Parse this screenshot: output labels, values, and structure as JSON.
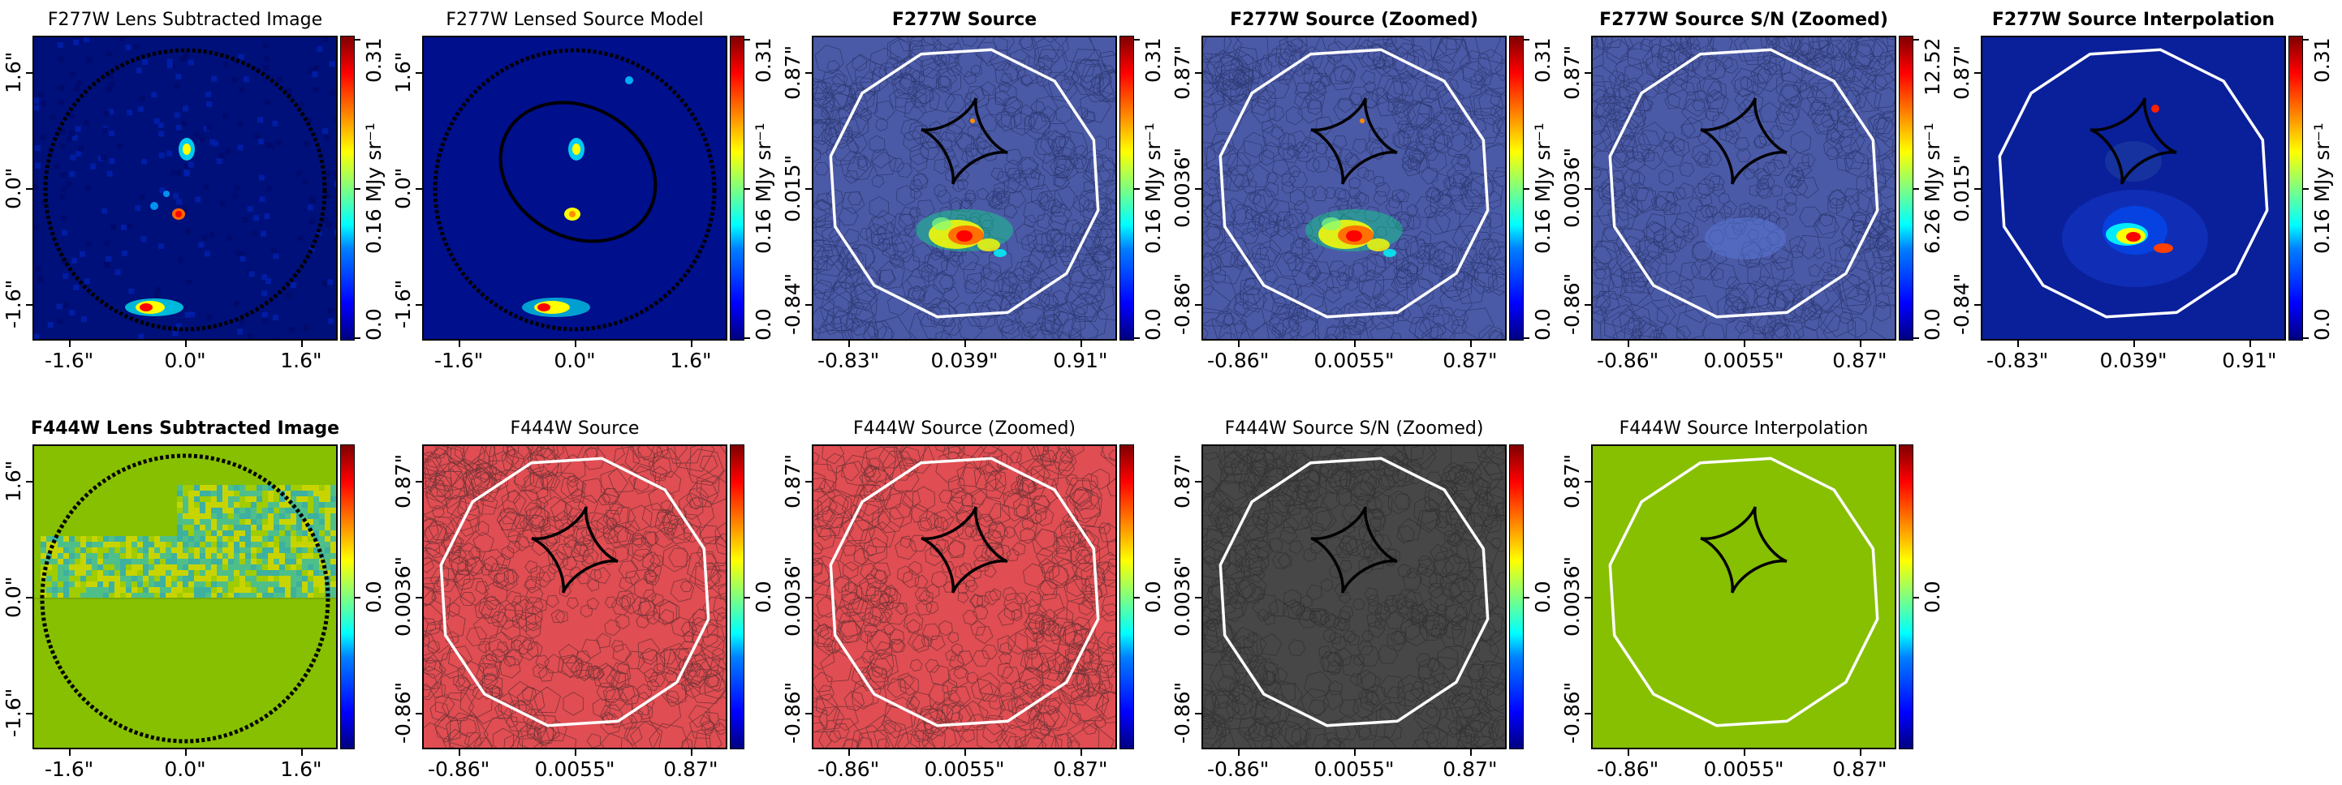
{
  "panels": [
    {
      "id": "p1",
      "title": "F277W Lens Subtracted Image",
      "bold": false,
      "kind": "image",
      "xticks": [
        "-1.6\"",
        "0.0\"",
        "1.6\""
      ],
      "yticks": [
        "1.6\"",
        "0.0\"",
        "-1.6\""
      ],
      "cbar_ticks": [
        "0.31",
        "0.16 MJy sr⁻¹",
        "0.0"
      ],
      "bg": "#00107a"
    },
    {
      "id": "p2",
      "title": "F277W Lensed Source Model",
      "bold": false,
      "kind": "model",
      "xticks": [
        "-1.6\"",
        "0.0\"",
        "1.6\""
      ],
      "yticks": [
        "1.6\"",
        "0.0\"",
        "-1.6\""
      ],
      "cbar_ticks": [
        "0.31",
        "0.16 MJy sr⁻¹",
        "0.0"
      ],
      "bg": "#000f8c"
    },
    {
      "id": "p3",
      "title": "F277W Source",
      "bold": true,
      "kind": "source",
      "xticks": [
        "-0.83\"",
        "0.039\"",
        "0.91\""
      ],
      "yticks": [
        "0.87\"",
        "0.015\"",
        "-0.84\""
      ],
      "cbar_ticks": [
        "0.31",
        "0.16 MJy sr⁻¹",
        "0.0"
      ],
      "bg": "#4b5aa6"
    },
    {
      "id": "p4",
      "title": "F277W Source (Zoomed)",
      "bold": true,
      "kind": "source",
      "xticks": [
        "-0.86\"",
        "0.0055\"",
        "0.87\""
      ],
      "yticks": [
        "0.87\"",
        "0.0036\"",
        "-0.86\""
      ],
      "cbar_ticks": [
        "0.31",
        "0.16 MJy sr⁻¹",
        "0.0"
      ],
      "bg": "#4b5aa6"
    },
    {
      "id": "p5",
      "title": "F277W Source S/N (Zoomed)",
      "bold": true,
      "kind": "sn",
      "xticks": [
        "-0.86\"",
        "0.0055\"",
        "0.87\""
      ],
      "yticks": [
        "0.87\"",
        "0.0036\"",
        "-0.86\""
      ],
      "cbar_ticks": [
        "12.52",
        "6.26 MJy sr⁻¹",
        "0.0"
      ],
      "bg": "#4b5aa6"
    },
    {
      "id": "p6",
      "title": "F277W Source Interpolation",
      "bold": true,
      "kind": "interp",
      "xticks": [
        "-0.83\"",
        "0.039\"",
        "0.91\""
      ],
      "yticks": [
        "0.87\"",
        "0.015\"",
        "-0.84\""
      ],
      "cbar_ticks": [
        "0.31",
        "0.16 MJy sr⁻¹",
        "0.0"
      ],
      "bg": "#0a1f9a"
    },
    {
      "id": "p7",
      "title": "F444W Lens Subtracted Image",
      "bold": true,
      "kind": "f444img",
      "xticks": [
        "-1.6\"",
        "0.0\"",
        "1.6\""
      ],
      "yticks": [
        "1.6\"",
        "0.0\"",
        "-1.6\""
      ],
      "cbar_ticks": [
        "0.0"
      ],
      "bg": "#86c000"
    },
    {
      "id": "p8",
      "title": "F444W Source",
      "bold": false,
      "kind": "flat",
      "xticks": [
        "-0.86\"",
        "0.0055\"",
        "0.87\""
      ],
      "yticks": [
        "0.87\"",
        "0.0036\"",
        "-0.86\""
      ],
      "cbar_ticks": [
        "0.0"
      ],
      "bg": "#e04d52"
    },
    {
      "id": "p9",
      "title": "F444W Source (Zoomed)",
      "bold": false,
      "kind": "flat",
      "xticks": [
        "-0.86\"",
        "0.0055\"",
        "0.87\""
      ],
      "yticks": [
        "0.87\"",
        "0.0036\"",
        "-0.86\""
      ],
      "cbar_ticks": [
        "0.0"
      ],
      "bg": "#e04d52"
    },
    {
      "id": "p10",
      "title": "F444W Source S/N (Zoomed)",
      "bold": false,
      "kind": "flat",
      "xticks": [
        "-0.86\"",
        "0.0055\"",
        "0.87\""
      ],
      "yticks": [
        "0.87\"",
        "0.0036\"",
        "-0.86\""
      ],
      "cbar_ticks": [
        "0.0"
      ],
      "bg": "#474747"
    },
    {
      "id": "p11",
      "title": "F444W Source Interpolation",
      "bold": false,
      "kind": "interpflat",
      "xticks": [
        "-0.86\"",
        "0.0055\"",
        "0.87\""
      ],
      "yticks": [
        "0.87\"",
        "0.0036\"",
        "-0.86\""
      ],
      "cbar_ticks": [
        "0.0"
      ],
      "bg": "#86c000"
    }
  ],
  "chart_data": [
    {
      "type": "heatmap",
      "title": "F277W Lens Subtracted Image",
      "colormap": "jet",
      "vmin": 0.0,
      "vmax": 0.31,
      "unit": "MJy sr⁻¹",
      "xticks": [
        "-1.6\"",
        "0.0\"",
        "1.6\""
      ],
      "yticks": [
        "1.6\"",
        "0.0\"",
        "-1.6\""
      ]
    },
    {
      "type": "heatmap",
      "title": "F277W Lensed Source Model",
      "colormap": "jet",
      "vmin": 0.0,
      "vmax": 0.31,
      "unit": "MJy sr⁻¹"
    },
    {
      "type": "heatmap",
      "title": "F277W Source",
      "colormap": "jet",
      "vmin": 0.0,
      "vmax": 0.31,
      "xticks": [
        "-0.83\"",
        "0.039\"",
        "0.91\""
      ],
      "yticks": [
        "0.87\"",
        "0.015\"",
        "-0.84\""
      ]
    },
    {
      "type": "heatmap",
      "title": "F277W Source (Zoomed)",
      "colormap": "jet",
      "vmin": 0.0,
      "vmax": 0.31,
      "xticks": [
        "-0.86\"",
        "0.0055\"",
        "0.87\""
      ],
      "yticks": [
        "0.87\"",
        "0.0036\"",
        "-0.86\""
      ]
    },
    {
      "type": "heatmap",
      "title": "F277W Source S/N (Zoomed)",
      "colormap": "jet",
      "vmin": 0.0,
      "vmax": 12.52
    },
    {
      "type": "heatmap",
      "title": "F277W Source Interpolation",
      "colormap": "jet",
      "vmin": 0.0,
      "vmax": 0.31
    },
    {
      "type": "heatmap",
      "title": "F444W Lens Subtracted Image",
      "colormap": "jet",
      "value": 0.0
    },
    {
      "type": "heatmap",
      "title": "F444W Source",
      "colormap": "jet",
      "value": 0.0
    },
    {
      "type": "heatmap",
      "title": "F444W Source (Zoomed)",
      "colormap": "jet",
      "value": 0.0
    },
    {
      "type": "heatmap",
      "title": "F444W Source S/N (Zoomed)",
      "colormap": "jet",
      "value": 0.0
    },
    {
      "type": "heatmap",
      "title": "F444W Source Interpolation",
      "colormap": "jet",
      "value": 0.0
    }
  ]
}
